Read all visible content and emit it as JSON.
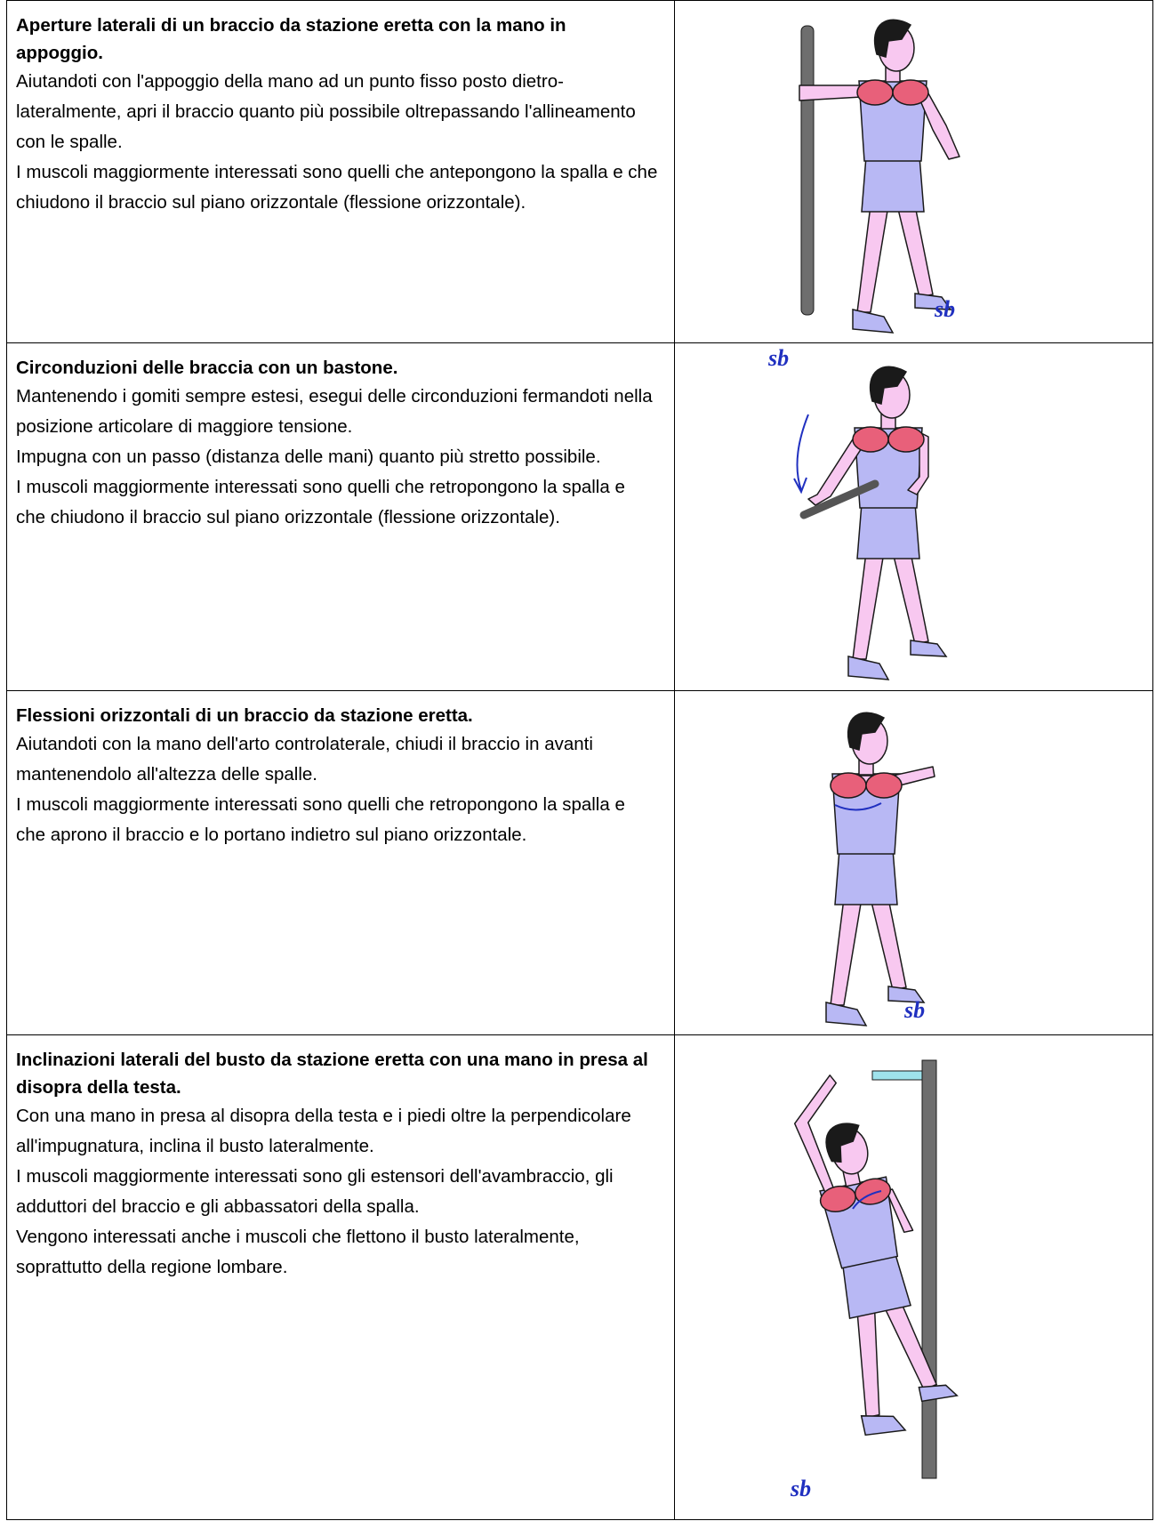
{
  "rows": [
    {
      "title": "Aperture laterali di un braccio da stazione eretta con la mano in appoggio.",
      "paragraphs": [
        "Aiutandoti con l'appoggio della mano ad un punto fisso posto dietro-lateralmente, apri il braccio quanto più possibile oltrepassando l'allineamento con le spalle.",
        "I muscoli maggiormente interessati sono quelli che antepongono la spalla e che chiudono il braccio sul piano orizzontale (flessione orizzontale)."
      ],
      "signature": "sb"
    },
    {
      "title": "Circonduzioni delle braccia con un bastone.",
      "paragraphs": [
        "Mantenendo i gomiti sempre estesi, esegui delle circonduzioni fermandoti nella posizione articolare di maggiore tensione.",
        "Impugna con un passo (distanza delle mani) quanto più stretto possibile.",
        "I muscoli maggiormente interessati sono quelli che retropongono la spalla e che chiudono il braccio sul piano orizzontale (flessione orizzontale)."
      ],
      "signature": "sb"
    },
    {
      "title": "Flessioni orizzontali di un braccio da stazione eretta.",
      "paragraphs": [
        "Aiutandoti con la mano dell'arto controlaterale, chiudi il braccio in avanti mantenendolo all'altezza delle spalle.",
        "I muscoli maggiormente interessati sono quelli che retropongono la spalla e che aprono il braccio e lo portano indietro sul piano orizzontale."
      ],
      "signature": "sb"
    },
    {
      "title": "Inclinazioni laterali del busto da stazione eretta con una mano in presa al disopra della testa.",
      "paragraphs": [
        "Con una mano in presa al disopra della testa e i piedi oltre la perpendicolare all'impugnatura, inclina il busto lateralmente.",
        "I muscoli maggiormente interessati sono gli estensori dell'avambraccio, gli adduttori del braccio e gli abbassatori della spalla.",
        "Vengono interessati anche i muscoli che flettono il busto lateralmente, soprattutto della regione lombare."
      ],
      "signature": "sb"
    }
  ]
}
